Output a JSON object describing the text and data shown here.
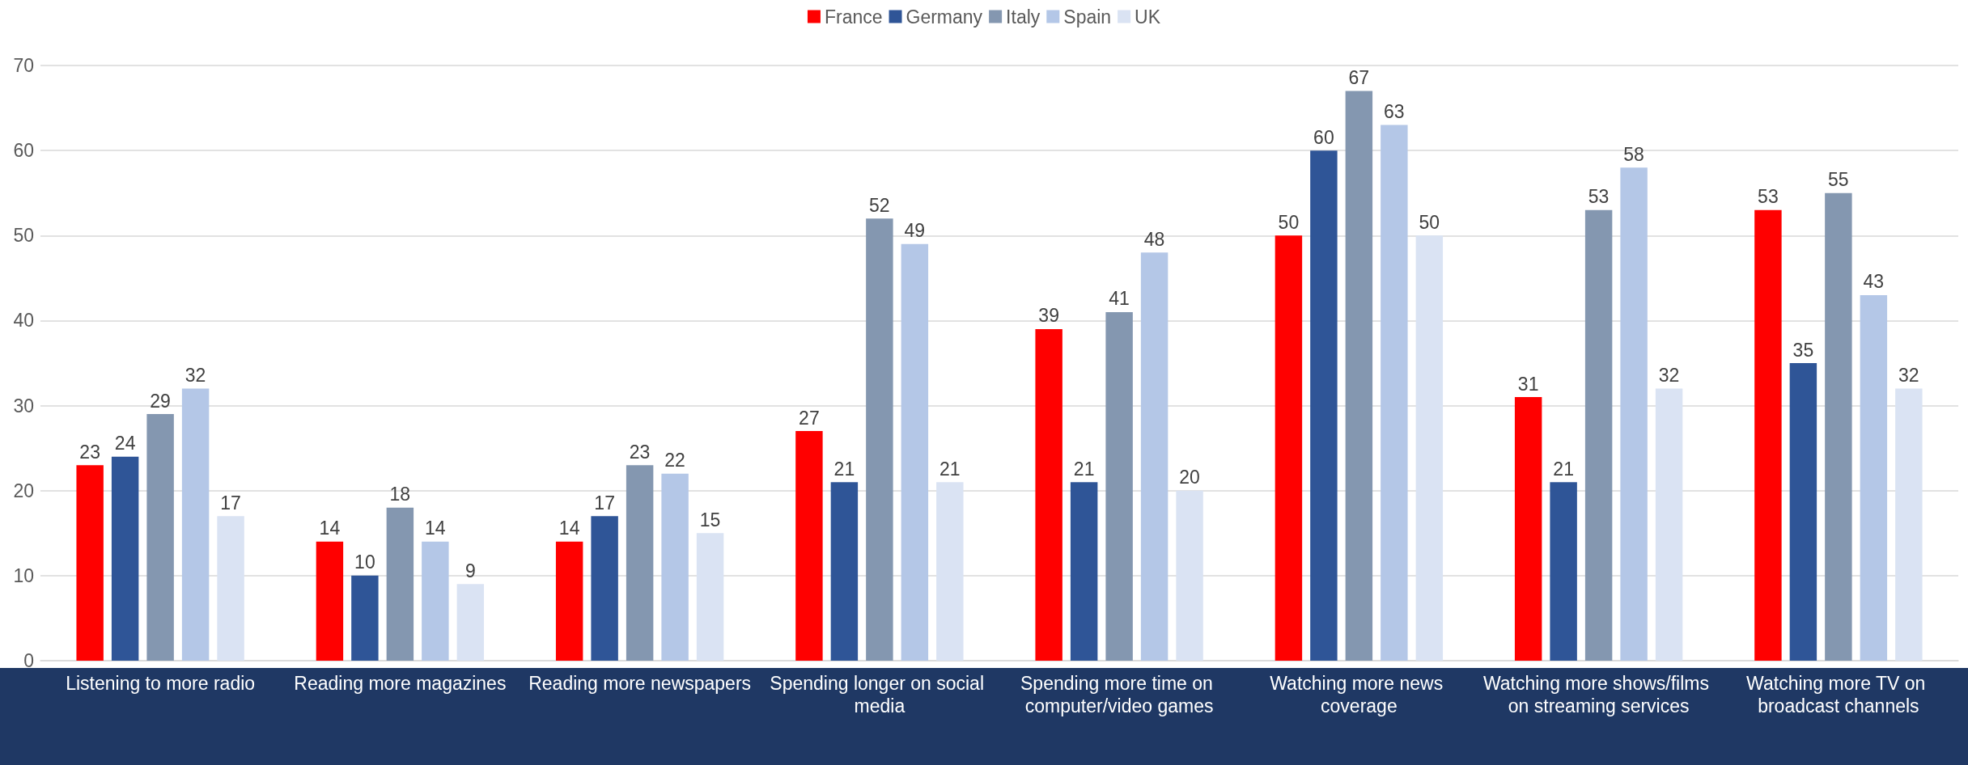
{
  "chart_data": {
    "type": "bar",
    "categories": [
      "Listening to more radio",
      "Reading more magazines",
      "Reading more newspapers",
      "Spending longer on social media",
      "Spending more time on computer/video games",
      "Watching more news coverage",
      "Watching more shows/films on streaming services",
      "Watching more TV on broadcast channels"
    ],
    "series": [
      {
        "name": "France",
        "color": "#ff0000",
        "values": [
          23,
          14,
          14,
          27,
          39,
          50,
          31,
          53
        ]
      },
      {
        "name": "Germany",
        "color": "#2f5597",
        "values": [
          24,
          10,
          17,
          21,
          21,
          60,
          21,
          35
        ]
      },
      {
        "name": "Italy",
        "color": "#8497b0",
        "values": [
          29,
          18,
          23,
          52,
          41,
          67,
          53,
          55
        ]
      },
      {
        "name": "Spain",
        "color": "#b4c7e7",
        "values": [
          32,
          14,
          22,
          49,
          48,
          63,
          58,
          43
        ]
      },
      {
        "name": "UK",
        "color": "#dae3f3",
        "values": [
          17,
          9,
          15,
          21,
          20,
          50,
          32,
          32
        ]
      }
    ],
    "ylim": [
      0,
      70
    ],
    "yticks": [
      0,
      10,
      20,
      30,
      40,
      50,
      60,
      70
    ],
    "grid": "y",
    "legend": "top",
    "data_labels": true
  }
}
